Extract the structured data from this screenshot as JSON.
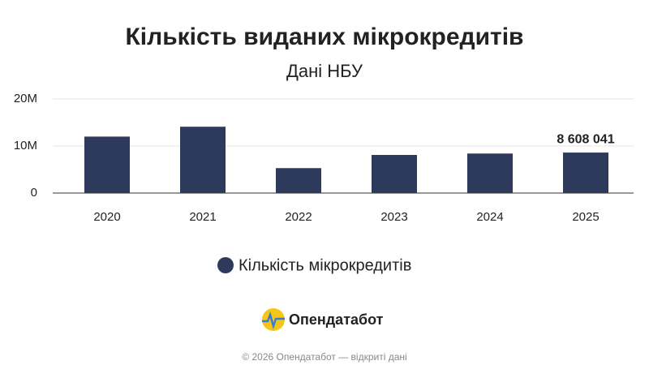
{
  "chart_data": {
    "type": "bar",
    "title": "Кількість виданих мікрокредитів",
    "subtitle": "Дані НБУ",
    "categories": [
      "2020",
      "2021",
      "2022",
      "2023",
      "2024",
      "2025"
    ],
    "series": [
      {
        "name": "Кількість мікрокредитів",
        "color": "#2e3a5c",
        "values": [
          12000000,
          14100000,
          5300000,
          8100000,
          8400000,
          8608041
        ],
        "value_labels": [
          null,
          null,
          null,
          null,
          null,
          "8 608 041"
        ]
      }
    ],
    "ylim": [
      0,
      20000000
    ],
    "yticks": [
      0,
      {
        "value": 10000000,
        "label": "10M"
      },
      {
        "value": 20000000,
        "label": "20M"
      }
    ],
    "grid": true
  },
  "brand": "Опендатабот",
  "footer": "© 2026 Опендатабот — відкриті дані"
}
